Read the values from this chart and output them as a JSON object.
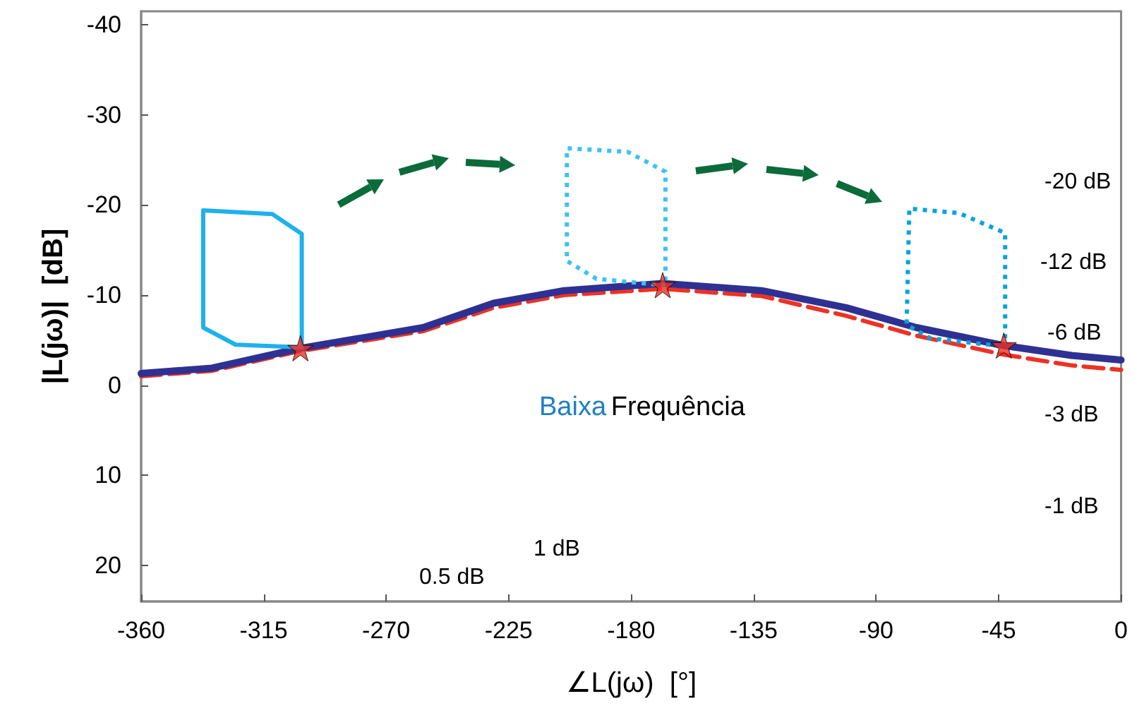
{
  "chart_data": {
    "type": "line",
    "xlabel": "∠L(jω)  [°]",
    "ylabel": "|L(jω)|  [dB]",
    "xlim": [
      -360,
      0
    ],
    "xticks": [
      -360,
      -315,
      -270,
      -225,
      -180,
      -135,
      -90,
      -45,
      0
    ],
    "ylim": [
      24,
      -41.5
    ],
    "yticks": [
      -40,
      -30,
      -20,
      -10,
      0,
      10,
      20
    ],
    "grid": false,
    "marker": "none",
    "series": [
      {
        "color": "#ee3124",
        "line_style": "dashed",
        "x": [
          -360,
          -334,
          -301.5,
          -256.4,
          -230.5,
          -204.6,
          -168.4,
          -132.1,
          -101,
          -75.2,
          -43.1,
          -18.2,
          0
        ],
        "values": [
          -1,
          -1.6,
          -3.8,
          -6,
          -8.6,
          -10,
          -10.7,
          -9.9,
          -7.7,
          -5.5,
          -3.4,
          -2.2,
          -1.7
        ]
      },
      {
        "color": "#2e3192",
        "line_style": "solid",
        "x": [
          -360,
          -334,
          -301.5,
          -256.4,
          -230.5,
          -204.6,
          -168.4,
          -132.1,
          -101,
          -75.2,
          -43.1,
          -18.2,
          0
        ],
        "values": [
          -1.3,
          -1.9,
          -4.1,
          -6.4,
          -9.1,
          -10.5,
          -11.3,
          -10.5,
          -8.6,
          -6.4,
          -4.4,
          -3.3,
          -2.8
        ]
      },
      {
        "color": "#1eb1ec",
        "line_style": "solid",
        "x": [
          -301,
          -301,
          -311.8,
          -337.2,
          -337.2,
          -325.3,
          -301
        ],
        "values": [
          -4.7,
          -16.8,
          -19,
          -19.4,
          -6.4,
          -4.5,
          -4.2
        ]
      },
      {
        "color": "#3dc2f5",
        "line_style": "dotted",
        "x": [
          -167.4,
          -167.4,
          -181.3,
          -203.6,
          -203.6,
          -192.7,
          -167.4
        ],
        "values": [
          -11.6,
          -23.7,
          -25.9,
          -26.3,
          -13.8,
          -11.8,
          -11.1
        ]
      },
      {
        "color": "#0aa2e0",
        "line_style": "dotted",
        "x": [
          -42.6,
          -42.6,
          -59.6,
          -77.8,
          -78.8,
          -70,
          -45.7
        ],
        "values": [
          -5.2,
          -16.9,
          -19.1,
          -19.6,
          -6.7,
          -5.2,
          -4.4
        ]
      },
      {
        "type": "scatter",
        "color": "#ee3124",
        "marker": "star",
        "x": [
          -301.5,
          -168.4,
          -43.1
        ],
        "values": [
          -4.1,
          -11.1,
          -4.4
        ]
      }
    ],
    "annotations": [
      "Baixa",
      "Frequência",
      "-20 dB",
      "-12 dB",
      "-6 dB",
      "-3 dB",
      "-1 dB",
      "1 dB",
      "0.5 dB"
    ]
  }
}
